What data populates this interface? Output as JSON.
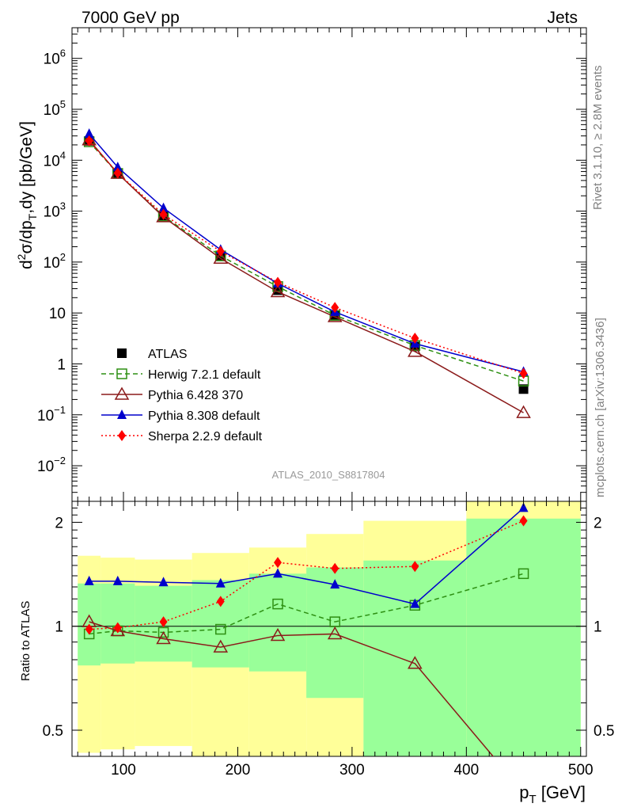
{
  "header": {
    "left": "7000 GeV pp",
    "right": "Jets",
    "side_rivet": "Rivet 3.1.10, ≥ 2.8M events",
    "side_mcplots": "mcplots.cern.ch [arXiv:1306.3436]",
    "analysis_id": "ATLAS_2010_S8817804"
  },
  "chart_data": [
    {
      "type": "line",
      "panel": "main",
      "ylabel": "d²σ/dp_T,dy [pb/GeV]",
      "yscale": "log",
      "xlim": [
        55,
        505
      ],
      "ylim": [
        0.002,
        4000000
      ],
      "yticks": [
        {
          "value": 0.01,
          "base": "10",
          "exp": "−2"
        },
        {
          "value": 0.1,
          "base": "10",
          "exp": "−1"
        },
        {
          "value": 1,
          "base": "1",
          "exp": ""
        },
        {
          "value": 10,
          "base": "10",
          "exp": ""
        },
        {
          "value": 100,
          "base": "10",
          "exp": "2"
        },
        {
          "value": 1000,
          "base": "10",
          "exp": "3"
        },
        {
          "value": 10000,
          "base": "10",
          "exp": "4"
        },
        {
          "value": 100000,
          "base": "10",
          "exp": "5"
        },
        {
          "value": 1000000,
          "base": "10",
          "exp": "6"
        }
      ],
      "legend_placement": "lower-left",
      "x": [
        70,
        95,
        135,
        185,
        235,
        285,
        355,
        450
      ],
      "series": [
        {
          "name": "ATLAS",
          "color": "#000000",
          "marker": "square-filled",
          "line": "none",
          "values": [
            24000,
            5600,
            820,
            135,
            28,
            8.8,
            2.2,
            0.32
          ]
        },
        {
          "name": "Herwig 7.2.1 default",
          "color": "#2d8f12",
          "marker": "square-open",
          "line": "dashed",
          "values": [
            23000,
            5500,
            800,
            132,
            33,
            9.0,
            2.3,
            0.46
          ]
        },
        {
          "name": "Pythia 6.428 370",
          "color": "#8b1a1a",
          "marker": "triangle-open",
          "line": "solid",
          "values": [
            25000,
            5500,
            770,
            118,
            26,
            8.4,
            1.75,
            0.11
          ]
        },
        {
          "name": "Pythia 8.308 default",
          "color": "#0000cc",
          "marker": "triangle-filled",
          "line": "solid",
          "values": [
            33000,
            7300,
            1150,
            175,
            38,
            10.5,
            2.5,
            0.7
          ]
        },
        {
          "name": "Sherpa 2.2.9 default",
          "color": "#ff0000",
          "marker": "diamond-filled",
          "line": "dotted",
          "values": [
            24000,
            5600,
            860,
            162,
            40,
            12.8,
            3.2,
            0.65
          ]
        }
      ]
    },
    {
      "type": "line",
      "panel": "ratio",
      "ylabel": "Ratio to ATLAS",
      "xlabel_main": "p",
      "xlabel_sub": "T",
      "xlabel_unit": "[GeV]",
      "yscale": "log",
      "xlim": [
        55,
        505
      ],
      "ylim": [
        0.42,
        2.3
      ],
      "yticks": [
        0.5,
        1,
        2
      ],
      "xticks": [
        100,
        200,
        300,
        400,
        500
      ],
      "reference_line": 1,
      "bins": [
        {
          "x0": 60,
          "x1": 80,
          "green": [
            0.77,
            1.33
          ],
          "yellow": [
            0.43,
            1.6
          ]
        },
        {
          "x0": 80,
          "x1": 110,
          "green": [
            0.78,
            1.33
          ],
          "yellow": [
            0.44,
            1.58
          ]
        },
        {
          "x0": 110,
          "x1": 160,
          "green": [
            0.79,
            1.31
          ],
          "yellow": [
            0.45,
            1.56
          ]
        },
        {
          "x0": 160,
          "x1": 210,
          "green": [
            0.76,
            1.36
          ],
          "yellow": [
            0.37,
            1.63
          ]
        },
        {
          "x0": 210,
          "x1": 260,
          "green": [
            0.74,
            1.42
          ],
          "yellow": [
            0.36,
            1.69
          ]
        },
        {
          "x0": 260,
          "x1": 310,
          "green": [
            0.62,
            1.48
          ],
          "yellow": [
            0.34,
            1.85
          ]
        },
        {
          "x0": 310,
          "x1": 400,
          "green": [
            0.4,
            1.55
          ],
          "yellow": [
            0.34,
            2.02
          ]
        },
        {
          "x0": 400,
          "x1": 500,
          "green": [
            0.4,
            2.05
          ],
          "yellow": [
            0.4,
            2.4
          ]
        }
      ],
      "x": [
        70,
        95,
        135,
        185,
        235,
        285,
        355,
        450
      ],
      "series": [
        {
          "name": "Herwig 7.2.1 default",
          "color": "#2d8f12",
          "marker": "square-open",
          "line": "dashed",
          "values": [
            0.95,
            0.97,
            0.96,
            0.98,
            1.16,
            1.03,
            1.15,
            1.42
          ]
        },
        {
          "name": "Pythia 6.428 370",
          "color": "#8b1a1a",
          "marker": "triangle-open",
          "line": "solid",
          "values": [
            1.03,
            0.97,
            0.92,
            0.87,
            0.94,
            0.95,
            0.78,
            0.33
          ]
        },
        {
          "name": "Pythia 8.308 default",
          "color": "#0000cc",
          "marker": "triangle-filled",
          "line": "solid",
          "values": [
            1.35,
            1.35,
            1.34,
            1.33,
            1.42,
            1.32,
            1.16,
            2.2
          ]
        },
        {
          "name": "Sherpa 2.2.9 default",
          "color": "#ff0000",
          "marker": "diamond-filled",
          "line": "dotted",
          "values": [
            0.98,
            0.99,
            1.03,
            1.18,
            1.53,
            1.47,
            1.49,
            2.02
          ]
        }
      ]
    }
  ]
}
